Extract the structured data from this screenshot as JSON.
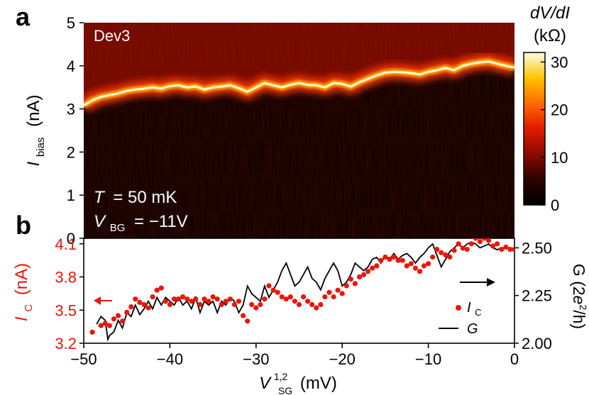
{
  "chart_data": [
    {
      "panel": "a",
      "type": "heatmap",
      "annotation": "Dev3",
      "conditions": {
        "T_label": "T",
        "T_value": "= 50 mK",
        "VBG_label": "V",
        "VBG_sub": "BG",
        "VBG_value": "= −11V"
      },
      "ylabel_main": "I",
      "ylabel_sub": "bias",
      "ylabel_unit": "(nA)",
      "ylim": [
        0,
        5
      ],
      "yticks": [
        "0",
        "1",
        "2",
        "3",
        "4",
        "5"
      ],
      "xlim": [
        -50,
        0
      ],
      "colorbar": {
        "title_line1": "dV/dI",
        "title_line2": "(kΩ)",
        "range": [
          0,
          32
        ],
        "ticks": [
          "0",
          "10",
          "20",
          "30"
        ],
        "colors": [
          "#000000",
          "#2a0300",
          "#8a0b00",
          "#e21a00",
          "#ff6a00",
          "#ffc400",
          "#fffbe6"
        ]
      },
      "peak_ridge": {
        "x": [
          -50,
          -49,
          -48,
          -47,
          -46,
          -45,
          -44,
          -43,
          -42,
          -41,
          -40,
          -39,
          -38,
          -37,
          -36,
          -35,
          -34,
          -33,
          -32,
          -31,
          -30,
          -29,
          -28,
          -27,
          -26,
          -25,
          -24,
          -23,
          -22,
          -21,
          -20,
          -19,
          -18,
          -17,
          -16,
          -15,
          -14,
          -13,
          -12,
          -11,
          -10,
          -9,
          -8,
          -7,
          -6,
          -5,
          -4,
          -3,
          -2,
          -1,
          0
        ],
        "y": [
          3.08,
          3.2,
          3.28,
          3.32,
          3.36,
          3.42,
          3.45,
          3.47,
          3.5,
          3.47,
          3.53,
          3.55,
          3.5,
          3.52,
          3.45,
          3.5,
          3.52,
          3.55,
          3.48,
          3.4,
          3.5,
          3.6,
          3.55,
          3.5,
          3.56,
          3.6,
          3.56,
          3.55,
          3.5,
          3.6,
          3.58,
          3.52,
          3.62,
          3.7,
          3.78,
          3.84,
          3.86,
          3.85,
          3.83,
          3.8,
          3.86,
          3.9,
          3.95,
          3.9,
          4.0,
          4.05,
          4.08,
          4.1,
          4.05,
          4.0,
          3.96
        ]
      }
    },
    {
      "panel": "b",
      "type": "scatter+line",
      "xlabel_main": "V",
      "xlabel_sup": "1,2",
      "xlabel_sub": "SG",
      "xlabel_unit": "(mV)",
      "xlim": [
        -50,
        0
      ],
      "xticks": [
        "−50",
        "−40",
        "−30",
        "−20",
        "−10",
        "0"
      ],
      "left_axis": {
        "label_main": "I",
        "label_sub": "C",
        "label_unit": "(nA)",
        "ylim": [
          3.2,
          4.15
        ],
        "ticks": [
          "3.2",
          "3.5",
          "3.8",
          "4.1"
        ],
        "color": "#e8170c"
      },
      "right_axis": {
        "label": "G (2e²/h)",
        "label_prefix": "G (2",
        "label_e": "e",
        "label_sup": "2",
        "label_suffix": "/h)",
        "ylim": [
          2.0,
          2.55
        ],
        "ticks": [
          "2.00",
          "2.25",
          "2.50"
        ],
        "color": "#000000"
      },
      "legend": {
        "position": "bottom-right",
        "ic_main": "I",
        "ic_sub": "C",
        "g_label": "G"
      },
      "series": [
        {
          "name": "I_C",
          "marker": "dot",
          "color": "#e8170c",
          "x": [
            -49.0,
            -48.0,
            -47.5,
            -47.0,
            -46.5,
            -46.0,
            -45.5,
            -45.0,
            -44.5,
            -44.0,
            -43.5,
            -43.0,
            -42.5,
            -42.0,
            -41.5,
            -41.0,
            -40.5,
            -40.0,
            -39.5,
            -39.0,
            -38.5,
            -38.0,
            -37.5,
            -37.0,
            -36.5,
            -36.0,
            -35.5,
            -35.0,
            -34.5,
            -34.0,
            -33.5,
            -33.0,
            -32.5,
            -32.0,
            -31.5,
            -31.0,
            -30.5,
            -30.0,
            -29.5,
            -29.0,
            -28.5,
            -28.0,
            -27.5,
            -27.0,
            -26.5,
            -26.0,
            -25.5,
            -25.0,
            -24.5,
            -24.0,
            -23.5,
            -23.0,
            -22.5,
            -22.0,
            -21.5,
            -21.0,
            -20.5,
            -20.0,
            -19.5,
            -19.0,
            -18.5,
            -18.0,
            -17.5,
            -17.0,
            -16.5,
            -16.0,
            -15.5,
            -15.0,
            -14.5,
            -14.0,
            -13.5,
            -13.0,
            -12.5,
            -12.0,
            -11.5,
            -11.0,
            -10.5,
            -10.0,
            -9.5,
            -9.0,
            -8.5,
            -8.0,
            -7.5,
            -7.0,
            -6.5,
            -6.0,
            -5.5,
            -5.0,
            -4.5,
            -4.0,
            -3.5,
            -3.0,
            -2.5,
            -2.0,
            -1.5,
            -1.0,
            -0.5,
            0.0
          ],
          "y": [
            3.3,
            3.36,
            3.38,
            3.36,
            3.42,
            3.45,
            3.4,
            3.48,
            3.53,
            3.6,
            3.57,
            3.55,
            3.52,
            3.62,
            3.68,
            3.7,
            3.58,
            3.55,
            3.6,
            3.6,
            3.62,
            3.6,
            3.58,
            3.6,
            3.55,
            3.6,
            3.58,
            3.62,
            3.6,
            3.55,
            3.58,
            3.6,
            3.55,
            3.58,
            3.45,
            3.4,
            3.55,
            3.52,
            3.55,
            3.6,
            3.72,
            3.68,
            3.66,
            3.62,
            3.6,
            3.62,
            3.58,
            3.55,
            3.62,
            3.58,
            3.55,
            3.52,
            3.55,
            3.62,
            3.66,
            3.62,
            3.68,
            3.65,
            3.72,
            3.78,
            3.74,
            3.8,
            3.82,
            3.85,
            3.88,
            3.9,
            3.95,
            3.98,
            3.96,
            3.98,
            3.95,
            3.95,
            3.9,
            3.92,
            3.88,
            3.85,
            3.9,
            3.92,
            3.98,
            4.05,
            4.02,
            4.0,
            3.98,
            4.04,
            4.1,
            4.06,
            4.05,
            4.1,
            4.15,
            4.12,
            4.15,
            4.13,
            4.08,
            4.1,
            4.05,
            4.07,
            4.05,
            4.05
          ]
        },
        {
          "name": "G",
          "marker": "line",
          "color": "#000000",
          "x": [
            -48.5,
            -48.0,
            -47.5,
            -47.2,
            -47.0,
            -46.5,
            -46.0,
            -45.5,
            -45.0,
            -44.5,
            -44.0,
            -43.5,
            -43.0,
            -42.5,
            -42.0,
            -41.5,
            -41.0,
            -40.5,
            -40.0,
            -39.5,
            -39.0,
            -38.5,
            -38.0,
            -37.5,
            -37.0,
            -36.5,
            -36.0,
            -35.5,
            -35.0,
            -34.5,
            -34.0,
            -33.5,
            -33.0,
            -32.5,
            -32.0,
            -31.5,
            -31.0,
            -30.5,
            -30.0,
            -29.5,
            -29.0,
            -28.5,
            -28.0,
            -27.5,
            -27.0,
            -26.5,
            -26.0,
            -25.5,
            -25.0,
            -24.5,
            -24.0,
            -23.5,
            -23.0,
            -22.5,
            -22.0,
            -21.5,
            -21.0,
            -20.5,
            -20.0,
            -19.5,
            -19.0,
            -18.5,
            -18.0,
            -17.5,
            -17.0,
            -16.5,
            -16.0,
            -15.5,
            -15.0,
            -14.5,
            -14.0,
            -13.5,
            -13.0,
            -12.5,
            -12.0,
            -11.5,
            -11.0,
            -10.5,
            -10.0,
            -9.5,
            -9.0,
            -8.5,
            -8.0,
            -7.5,
            -7.0,
            -6.5,
            -6.0,
            -5.5,
            -5.0,
            -4.5,
            -4.0,
            -3.5,
            -3.0,
            -2.5,
            -2.0,
            -1.5,
            -1.0,
            -0.5,
            0.0
          ],
          "y": [
            2.1,
            2.14,
            2.12,
            2.02,
            2.04,
            2.06,
            2.12,
            2.08,
            2.16,
            2.14,
            2.2,
            2.15,
            2.18,
            2.22,
            2.18,
            2.24,
            2.2,
            2.24,
            2.22,
            2.2,
            2.24,
            2.2,
            2.22,
            2.18,
            2.24,
            2.16,
            2.22,
            2.2,
            2.22,
            2.16,
            2.22,
            2.2,
            2.24,
            2.22,
            2.16,
            2.2,
            2.3,
            2.26,
            2.24,
            2.22,
            2.3,
            2.24,
            2.28,
            2.32,
            2.38,
            2.42,
            2.36,
            2.3,
            2.32,
            2.36,
            2.4,
            2.34,
            2.32,
            2.28,
            2.34,
            2.38,
            2.42,
            2.38,
            2.3,
            2.32,
            2.36,
            2.42,
            2.4,
            2.38,
            2.4,
            2.44,
            2.45,
            2.42,
            2.46,
            2.44,
            2.47,
            2.44,
            2.46,
            2.47,
            2.45,
            2.42,
            2.45,
            2.47,
            2.5,
            2.52,
            2.46,
            2.4,
            2.44,
            2.48,
            2.5,
            2.52,
            2.5,
            2.52,
            2.53,
            2.52,
            2.5,
            2.51,
            2.52,
            2.5,
            2.49,
            2.5,
            2.5,
            2.5,
            2.49
          ]
        }
      ]
    }
  ]
}
